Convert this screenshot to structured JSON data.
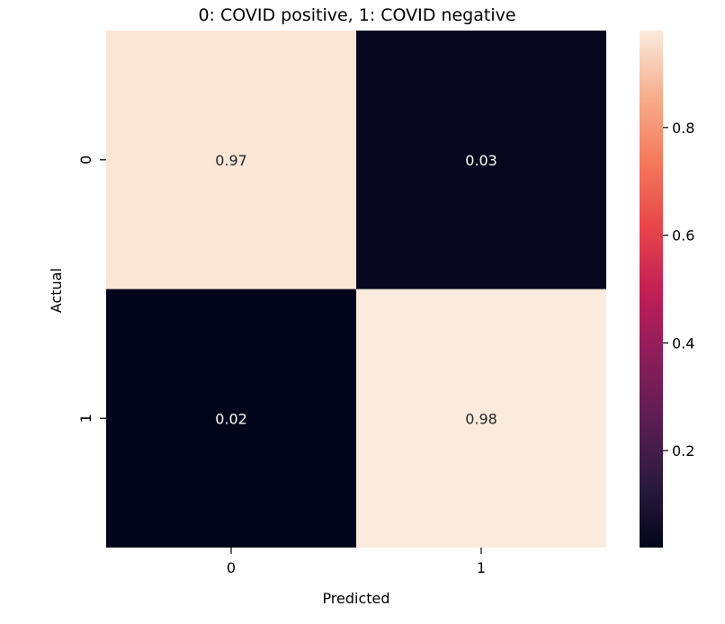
{
  "chart_data": {
    "type": "heatmap",
    "title": "0: COVID positive, 1: COVID negative",
    "xlabel": "Predicted",
    "ylabel": "Actual",
    "x_categories": [
      "0",
      "1"
    ],
    "y_categories": [
      "0",
      "1"
    ],
    "values": [
      [
        0.97,
        0.03
      ],
      [
        0.02,
        0.98
      ]
    ],
    "cell_labels": [
      [
        "0.97",
        "0.03"
      ],
      [
        "0.02",
        "0.98"
      ]
    ],
    "colorbar": {
      "range": [
        0.02,
        0.98
      ],
      "ticks": [
        0.2,
        0.4,
        0.6,
        0.8
      ],
      "tick_labels": [
        "0.2",
        "0.4",
        "0.6",
        "0.8"
      ],
      "colormap": "rocket"
    }
  }
}
